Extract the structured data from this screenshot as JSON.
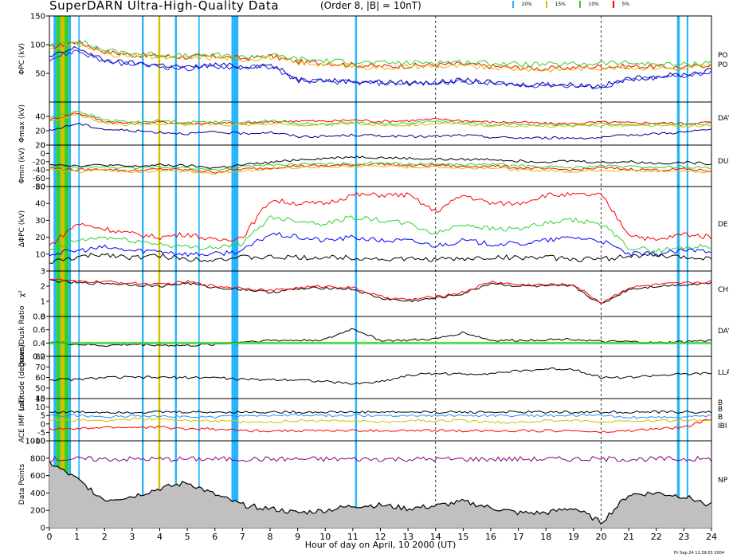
{
  "title": "SuperDARN Ultra-High-Quality Data",
  "subtitle": "(Order 8, |B| = 10nT)",
  "legend": [
    {
      "label": "20%",
      "color": "#28b4ff"
    },
    {
      "label": "15%",
      "color": "#d4c000"
    },
    {
      "label": "10%",
      "color": "#30d030"
    },
    {
      "label": "5%",
      "color": "#ff0000"
    }
  ],
  "xlabel": "Hour of day on April, 10 2000 (UT)",
  "timestamp": "Fri Sep 24 11:39:03 2004",
  "right_labels": [
    "PO",
    "PO",
    "DAY",
    "DU",
    "DE",
    "CH",
    "DAY",
    "LLA",
    "B",
    "B",
    "B",
    "IBI",
    "NP"
  ],
  "chart_data": {
    "type": "line",
    "x_range": [
      0,
      24
    ],
    "x_ticks": [
      "0",
      "1",
      "2",
      "3",
      "4",
      "5",
      "6",
      "7",
      "8",
      "9",
      "10",
      "11",
      "12",
      "13",
      "14",
      "15",
      "16",
      "17",
      "18",
      "19",
      "20",
      "21",
      "22",
      "23",
      "24"
    ],
    "dashed_vertical_lines_hours": [
      14,
      20
    ],
    "highlight_bands_hours": [
      {
        "start": 0.15,
        "end": 0.25,
        "color": "#28b4ff"
      },
      {
        "start": 0.25,
        "end": 0.4,
        "color": "#30d030"
      },
      {
        "start": 0.4,
        "end": 0.55,
        "color": "#d4c000"
      },
      {
        "start": 0.55,
        "end": 0.7,
        "color": "#30d030"
      },
      {
        "start": 0.7,
        "end": 0.78,
        "color": "#28b4ff"
      },
      {
        "start": 1.05,
        "end": 1.1,
        "color": "#28b4ff"
      },
      {
        "start": 3.35,
        "end": 3.42,
        "color": "#28b4ff"
      },
      {
        "start": 3.95,
        "end": 4.02,
        "color": "#d4c000"
      },
      {
        "start": 4.55,
        "end": 4.62,
        "color": "#28b4ff"
      },
      {
        "start": 5.4,
        "end": 5.45,
        "color": "#28b4ff"
      },
      {
        "start": 6.6,
        "end": 6.85,
        "color": "#28b4ff"
      },
      {
        "start": 11.08,
        "end": 11.15,
        "color": "#28b4ff"
      },
      {
        "start": 22.75,
        "end": 22.85,
        "color": "#28b4ff"
      },
      {
        "start": 23.1,
        "end": 23.16,
        "color": "#28b4ff"
      }
    ],
    "panels": [
      {
        "ylabel": "ΦPC (kV)",
        "ylim": [
          0,
          150
        ],
        "ticks": [
          "50",
          "100",
          "150"
        ],
        "series": [
          {
            "color": "#ff0000",
            "values": [
              95,
              105,
              88,
              82,
              80,
              78,
              80,
              76,
              80,
              70,
              68,
              65,
              62,
              63,
              65,
              66,
              62,
              60,
              58,
              60,
              62,
              62,
              62,
              60,
              66
            ]
          },
          {
            "color": "#30d030",
            "values": [
              98,
              108,
              90,
              85,
              83,
              80,
              82,
              78,
              82,
              75,
              72,
              70,
              68,
              68,
              70,
              70,
              68,
              66,
              65,
              66,
              68,
              68,
              66,
              65,
              70
            ]
          },
          {
            "color": "#d4c000",
            "values": [
              92,
              102,
              85,
              80,
              78,
              76,
              78,
              74,
              78,
              68,
              66,
              62,
              60,
              62,
              62,
              62,
              60,
              58,
              56,
              58,
              60,
              60,
              60,
              58,
              64
            ]
          },
          {
            "color": "#00008b",
            "values": [
              78,
              95,
              72,
              68,
              65,
              60,
              65,
              62,
              65,
              40,
              38,
              36,
              35,
              34,
              34,
              38,
              34,
              30,
              32,
              30,
              28,
              40,
              45,
              48,
              55
            ]
          },
          {
            "color": "#2020ff",
            "values": [
              75,
              90,
              70,
              66,
              62,
              58,
              62,
              60,
              62,
              38,
              36,
              34,
              33,
              32,
              33,
              36,
              32,
              28,
              30,
              28,
              26,
              38,
              42,
              46,
              52
            ]
          }
        ]
      },
      {
        "ylabel": "Φmax (kV)",
        "ylim": [
          0,
          60
        ],
        "ticks": [
          "0",
          "20",
          "40"
        ],
        "series": [
          {
            "color": "#ff0000",
            "values": [
              35,
              45,
              33,
              30,
              32,
              30,
              31,
              30,
              32,
              34,
              33,
              35,
              33,
              34,
              36,
              34,
              32,
              32,
              30,
              30,
              32,
              31,
              31,
              30,
              32
            ]
          },
          {
            "color": "#30d030",
            "values": [
              38,
              48,
              35,
              32,
              34,
              32,
              33,
              32,
              34,
              30,
              29,
              32,
              30,
              30,
              33,
              31,
              29,
              29,
              28,
              28,
              30,
              28,
              29,
              28,
              30
            ]
          },
          {
            "color": "#d4c000",
            "values": [
              33,
              43,
              31,
              28,
              30,
              28,
              29,
              28,
              30,
              28,
              28,
              30,
              28,
              28,
              30,
              29,
              27,
              27,
              26,
              26,
              28,
              27,
              27,
              26,
              28
            ]
          },
          {
            "color": "#00008b",
            "values": [
              20,
              30,
              22,
              20,
              18,
              16,
              18,
              16,
              18,
              12,
              12,
              14,
              13,
              12,
              12,
              14,
              11,
              10,
              10,
              10,
              10,
              14,
              16,
              18,
              22
            ]
          }
        ]
      },
      {
        "ylabel": "Φmin (kV)",
        "ylim": [
          -80,
          20
        ],
        "ticks": [
          "-80",
          "-60",
          "-40",
          "-20",
          "0",
          "20"
        ],
        "series": [
          {
            "color": "#ff0000",
            "values": [
              -35,
              -40,
              -38,
              -42,
              -38,
              -40,
              -45,
              -38,
              -35,
              -30,
              -30,
              -28,
              -25,
              -30,
              -28,
              -32,
              -30,
              -35,
              -38,
              -40,
              -35,
              -38,
              -40,
              -38,
              -42
            ]
          },
          {
            "color": "#30d030",
            "values": [
              -30,
              -35,
              -32,
              -36,
              -32,
              -35,
              -40,
              -32,
              -28,
              -26,
              -26,
              -25,
              -22,
              -26,
              -25,
              -28,
              -26,
              -30,
              -32,
              -35,
              -30,
              -32,
              -34,
              -32,
              -36
            ]
          },
          {
            "color": "#d4c000",
            "values": [
              -38,
              -44,
              -40,
              -45,
              -42,
              -44,
              -48,
              -42,
              -38,
              -34,
              -34,
              -32,
              -30,
              -34,
              -32,
              -36,
              -34,
              -40,
              -42,
              -44,
              -40,
              -42,
              -44,
              -42,
              -46
            ]
          },
          {
            "color": "#000000",
            "values": [
              -25,
              -30,
              -28,
              -32,
              -28,
              -30,
              -35,
              -28,
              -22,
              -15,
              -12,
              -8,
              -10,
              -12,
              -14,
              -15,
              -14,
              -18,
              -20,
              -18,
              -22,
              -20,
              -24,
              -22,
              -25
            ]
          }
        ]
      },
      {
        "ylabel": "ΔΦPC (kV)",
        "ylim": [
          0,
          50
        ],
        "ticks": [
          "10",
          "20",
          "30",
          "40",
          "50"
        ],
        "series": [
          {
            "color": "#ff0000",
            "values": [
              15,
              28,
              25,
              22,
              20,
              22,
              18,
              20,
              42,
              40,
              40,
              45,
              45,
              45,
              35,
              45,
              40,
              40,
              45,
              45,
              45,
              22,
              18,
              22,
              20
            ]
          },
          {
            "color": "#30d030",
            "values": [
              12,
              18,
              20,
              18,
              16,
              14,
              14,
              16,
              32,
              30,
              28,
              32,
              30,
              28,
              22,
              28,
              25,
              25,
              28,
              30,
              28,
              14,
              12,
              14,
              15
            ]
          },
          {
            "color": "#0000ff",
            "values": [
              10,
              12,
              14,
              12,
              12,
              10,
              10,
              12,
              22,
              20,
              18,
              20,
              18,
              18,
              15,
              18,
              16,
              16,
              18,
              20,
              18,
              10,
              10,
              12,
              12
            ]
          },
          {
            "color": "#000000",
            "values": [
              5,
              8,
              10,
              8,
              9,
              7,
              7,
              8,
              8,
              8,
              8,
              8,
              7,
              7,
              7,
              7,
              8,
              8,
              8,
              7,
              7,
              9,
              9,
              8,
              8
            ]
          }
        ]
      },
      {
        "ylabel": "χ²",
        "ylim": [
          0,
          3
        ],
        "ticks": [
          "0",
          "1",
          "2",
          "3"
        ],
        "series": [
          {
            "color": "#000000",
            "values": [
              2.4,
              2.2,
              2.2,
              2.1,
              2.0,
              2.2,
              1.9,
              1.8,
              1.6,
              1.8,
              1.9,
              1.8,
              1.2,
              1.0,
              1.2,
              1.5,
              2.2,
              2.0,
              2.0,
              2.0,
              0.8,
              1.8,
              2.0,
              2.1,
              2.2
            ]
          },
          {
            "color": "#ff0000",
            "values": [
              2.5,
              2.3,
              2.3,
              2.2,
              2.1,
              2.3,
              2.0,
              1.9,
              1.7,
              1.9,
              2.0,
              1.9,
              1.3,
              1.1,
              1.3,
              1.6,
              2.3,
              2.1,
              2.1,
              2.1,
              0.9,
              1.9,
              2.1,
              2.2,
              2.3
            ]
          }
        ]
      },
      {
        "ylabel": "Dawn/Dusk Ratio",
        "ylim": [
          0.2,
          0.8
        ],
        "ticks": [
          "0.2",
          "0.4",
          "0.6",
          "0.8"
        ],
        "series": [
          {
            "color": "#000000",
            "values": [
              0.42,
              0.38,
              0.36,
              0.38,
              0.37,
              0.36,
              0.38,
              0.42,
              0.44,
              0.44,
              0.45,
              0.62,
              0.44,
              0.44,
              0.46,
              0.56,
              0.44,
              0.44,
              0.45,
              0.46,
              0.42,
              0.42,
              0.4,
              0.42,
              0.44
            ]
          }
        ]
      },
      {
        "ylabel": "Latitude (degrees)",
        "ylim": [
          40,
          80
        ],
        "ticks": [
          "40",
          "50",
          "60",
          "70",
          "80"
        ],
        "series": [
          {
            "color": "#000000",
            "values": [
              58,
              58,
              60,
              60,
              60,
              60,
              60,
              58,
              58,
              58,
              56,
              54,
              56,
              62,
              64,
              63,
              64,
              66,
              68,
              68,
              60,
              60,
              62,
              63,
              64
            ]
          }
        ]
      },
      {
        "ylabel": "ACE IMF (nT)",
        "ylim": [
          -10,
          15
        ],
        "ticks": [
          "-10",
          "-5",
          "0",
          "5",
          "10",
          "15"
        ],
        "series": [
          {
            "color": "#000000",
            "values": [
              7,
              7,
              7,
              7,
              7,
              7,
              7,
              7,
              7,
              7,
              7,
              7,
              7,
              7,
              7,
              7,
              7,
              7,
              7,
              7,
              7,
              7,
              7,
              7,
              7
            ]
          },
          {
            "color": "#ff0000",
            "values": [
              -3,
              -3,
              -2,
              -2,
              -2,
              -3,
              -3,
              -4,
              -4,
              -4,
              -4,
              -4,
              -4,
              -4,
              -4,
              -4,
              -4,
              -4,
              -4,
              -4,
              -5,
              -4,
              -3,
              -2,
              3
            ]
          },
          {
            "color": "#d4c000",
            "values": [
              3,
              2,
              2,
              3,
              3,
              2,
              2,
              1,
              1,
              2,
              2,
              2,
              1,
              2,
              2,
              2,
              1,
              1,
              2,
              2,
              1,
              2,
              2,
              2,
              2
            ]
          },
          {
            "color": "#1e90ff",
            "values": [
              5,
              5,
              4,
              5,
              5,
              4,
              4,
              5,
              5,
              5,
              5,
              5,
              5,
              5,
              5,
              5,
              5,
              5,
              5,
              5,
              5,
              4,
              4,
              4,
              5
            ]
          }
        ]
      },
      {
        "ylabel": "Data Points",
        "ylim": [
          0,
          1000
        ],
        "ticks": [
          "0",
          "200",
          "400",
          "600",
          "800",
          "1000"
        ],
        "series": [
          {
            "color": "#000000",
            "fill": "#c0c0c0",
            "values": [
              750,
              560,
              320,
              360,
              450,
              520,
              380,
              260,
              220,
              170,
              200,
              250,
              260,
              220,
              250,
              300,
              230,
              170,
              170,
              230,
              60,
              380,
              400,
              360,
              260
            ]
          },
          {
            "color": "#800080",
            "values": [
              790,
              790,
              790,
              790,
              790,
              790,
              790,
              790,
              790,
              790,
              790,
              790,
              790,
              790,
              790,
              790,
              790,
              790,
              790,
              790,
              790,
              790,
              790,
              790,
              790
            ]
          }
        ]
      }
    ]
  }
}
